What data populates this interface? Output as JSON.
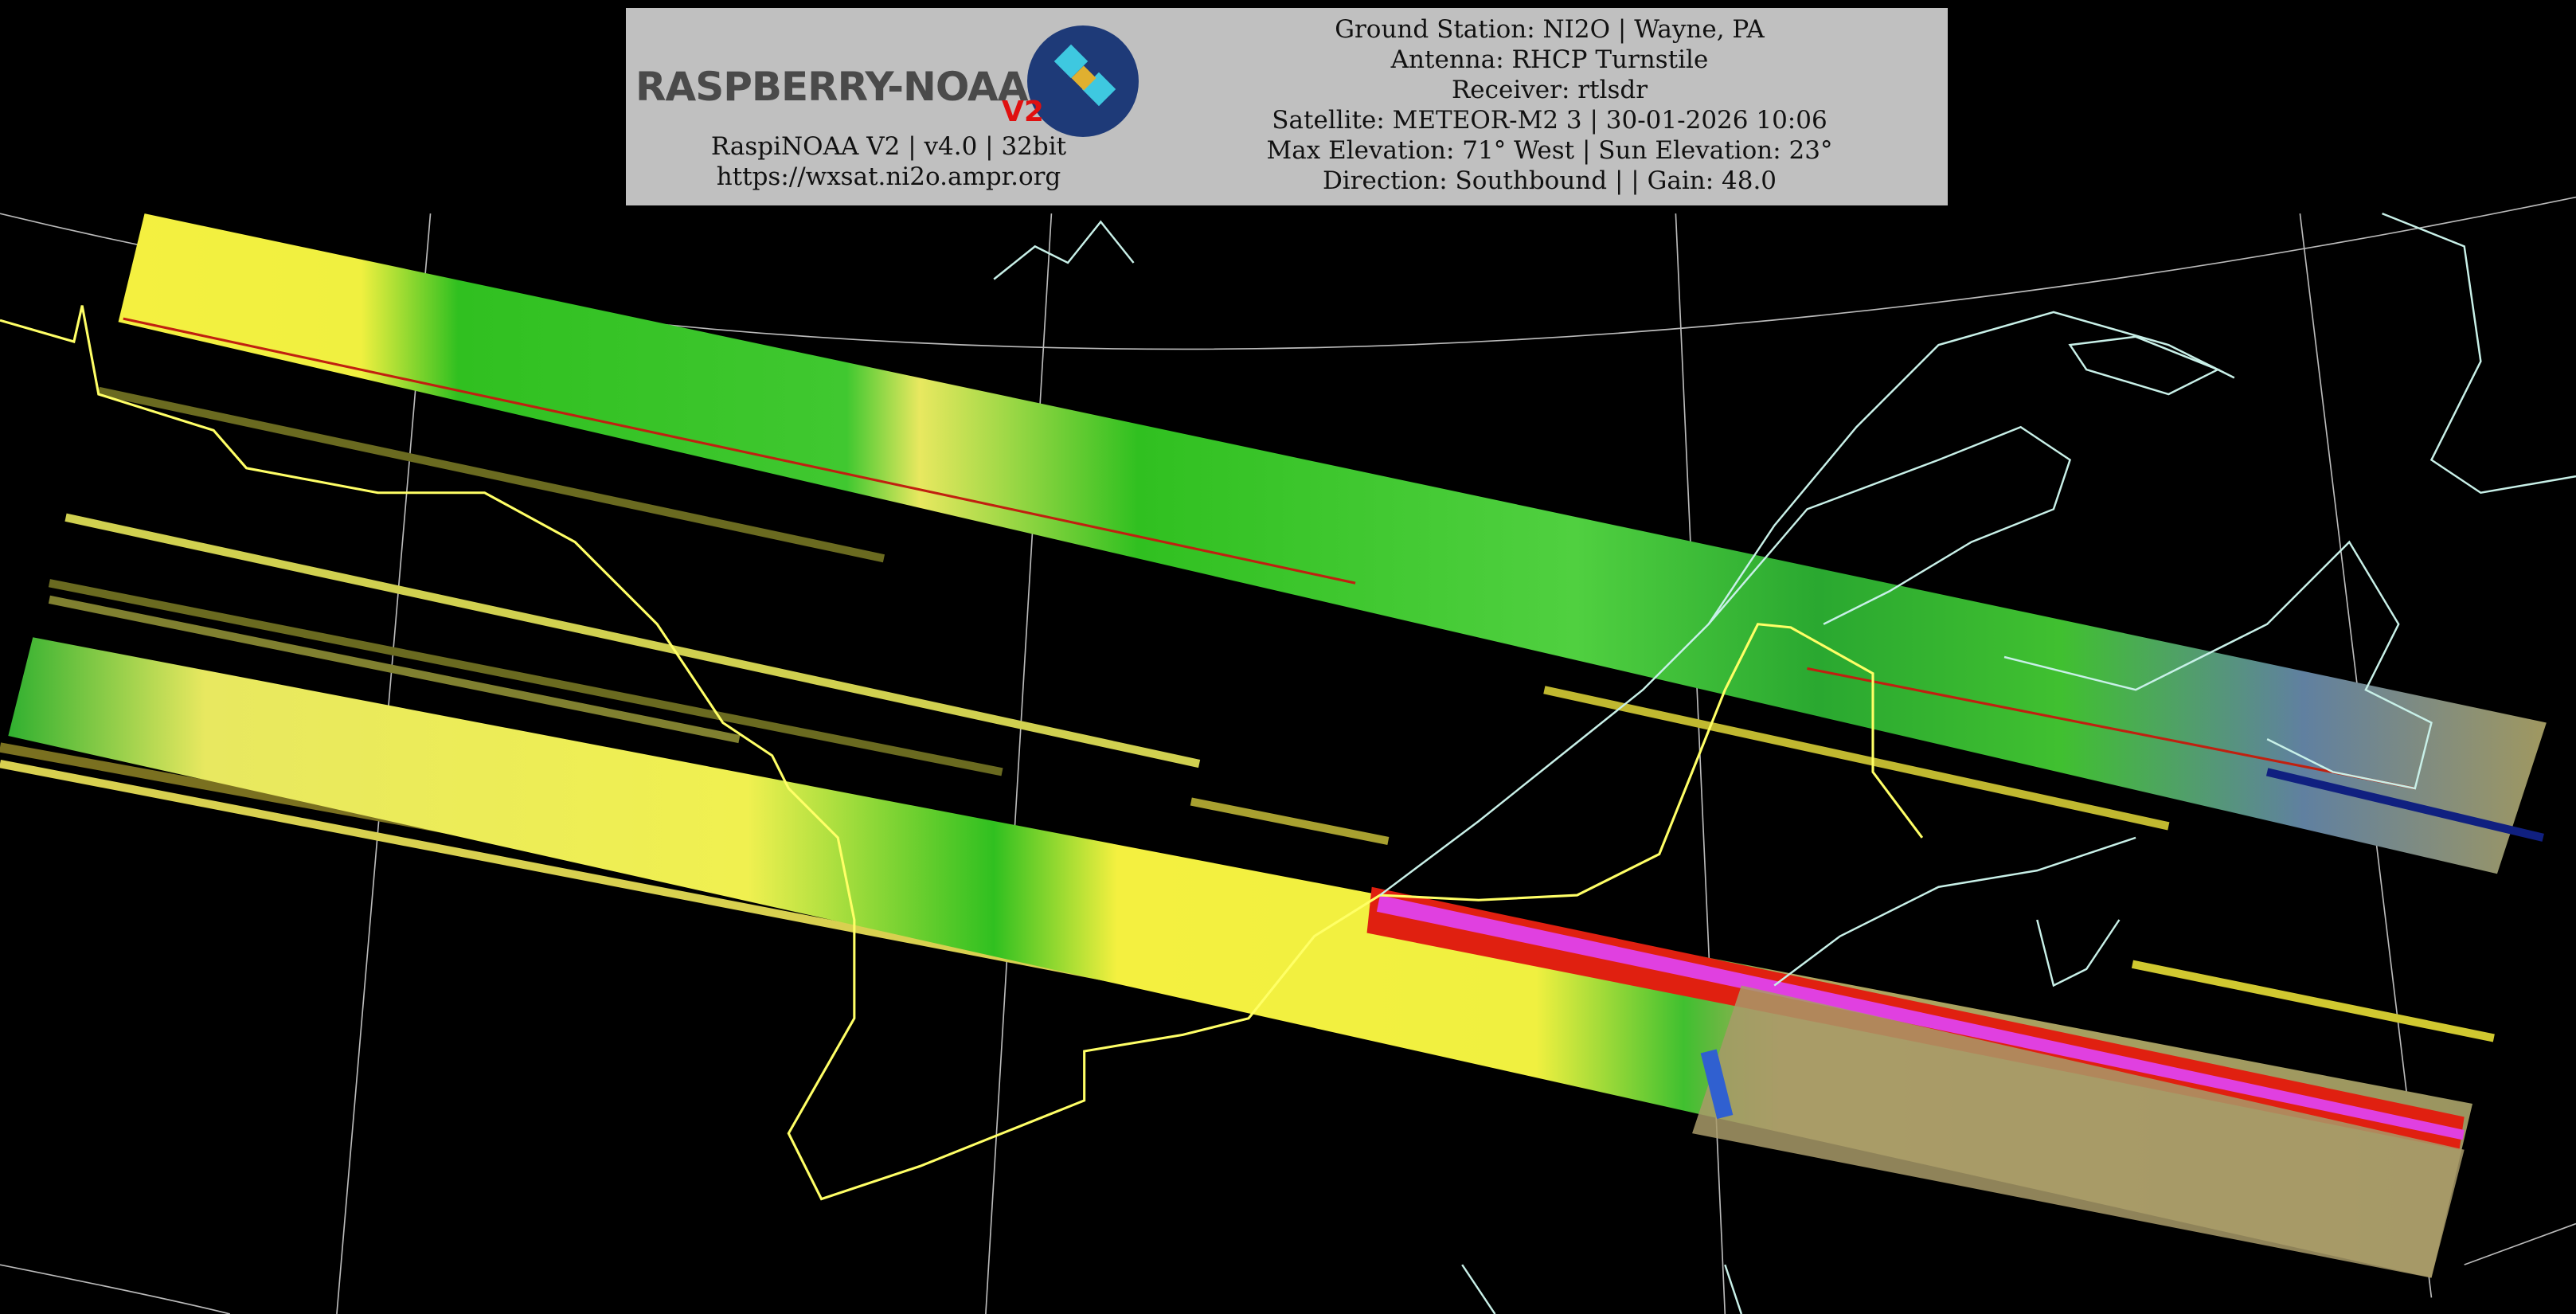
{
  "header": {
    "logo_text": "RASPBERRY-NOAA",
    "logo_version": "V2",
    "software_line": "RaspiNOAA V2 | v4.0 | 32bit",
    "url": "https://wxsat.ni2o.ampr.org",
    "ground_station": "Ground Station: NI2O | Wayne, PA",
    "antenna": "Antenna: RHCP Turnstile",
    "receiver": "Receiver: rtlsdr",
    "satellite": "Satellite: METEOR-M2 3 | 30-01-2026 10:06",
    "elevation": "Max Elevation: 71° West | Sun Elevation: 23°",
    "direction": "Direction: Southbound | | Gain: 48.0"
  },
  "colors": {
    "background": "#000000",
    "header_bg": "#c0c0c0",
    "border_line": "#ffff66",
    "coastline": "#c8f0e8",
    "graticule": "#bbbbbb",
    "cloud_yellow": "#f0f040",
    "land_green": "#20c020"
  }
}
